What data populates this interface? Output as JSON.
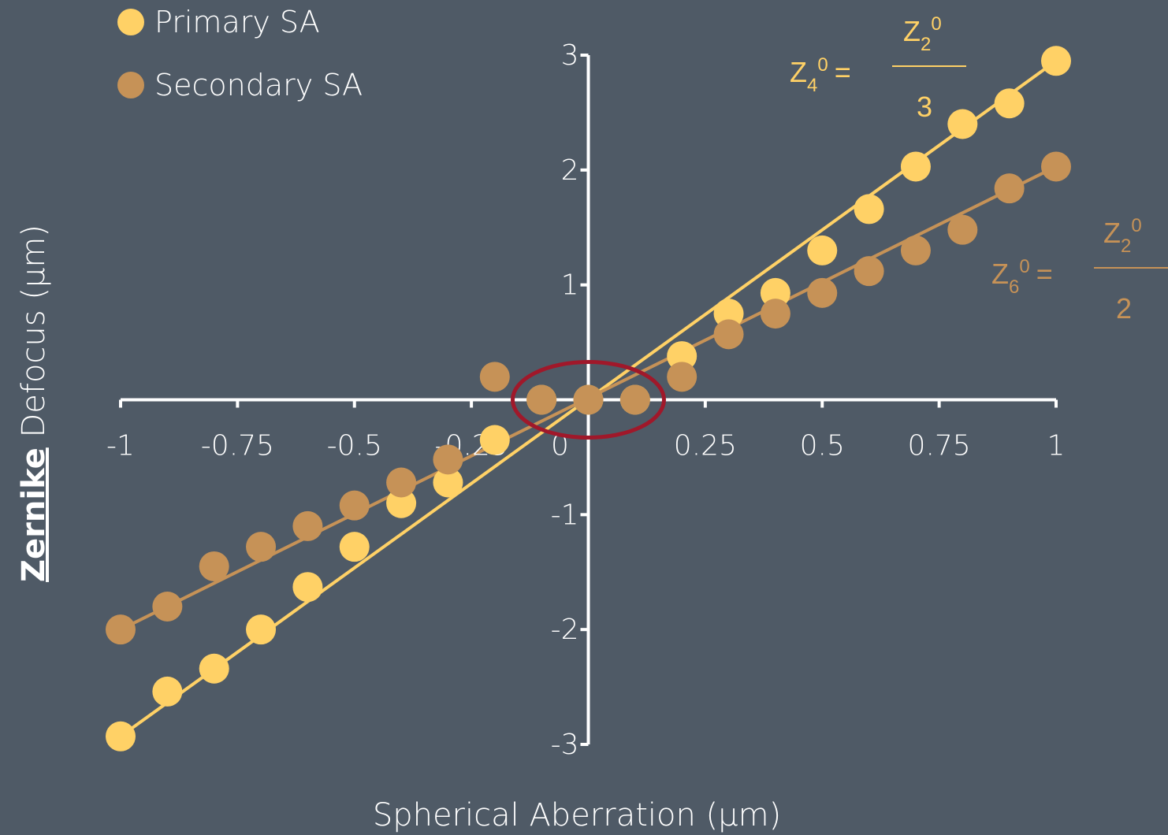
{
  "chart_data": {
    "type": "scatter",
    "xlabel": "Spherical Aberration (μm)",
    "ylabel_underlined": "Zernike",
    "ylabel_rest": " Defocus  (μm)",
    "xlim": [
      -1,
      1
    ],
    "ylim": [
      -3,
      3
    ],
    "x_ticks": [
      {
        "value": -1,
        "label": "-1"
      },
      {
        "value": -0.75,
        "label": "-0.75"
      },
      {
        "value": -0.5,
        "label": "-0.5"
      },
      {
        "value": -0.25,
        "label": "-0.25"
      },
      {
        "value": 0,
        "label": "0"
      },
      {
        "value": 0.25,
        "label": "0.25"
      },
      {
        "value": 0.5,
        "label": "0.5"
      },
      {
        "value": 0.75,
        "label": "0.75"
      },
      {
        "value": 1,
        "label": "1"
      }
    ],
    "y_ticks": [
      {
        "value": 3,
        "label": "3"
      },
      {
        "value": 2,
        "label": "2"
      },
      {
        "value": 1,
        "label": "1"
      },
      {
        "value": -1,
        "label": "-1"
      },
      {
        "value": -2,
        "label": "-2"
      },
      {
        "value": -3,
        "label": "-3"
      }
    ],
    "series": [
      {
        "name": "Primary SA",
        "color": "#ffd166",
        "points": [
          [
            -1.0,
            -2.93
          ],
          [
            -0.9,
            -2.54
          ],
          [
            -0.8,
            -2.34
          ],
          [
            -0.7,
            -2.0
          ],
          [
            -0.6,
            -1.63
          ],
          [
            -0.5,
            -1.28
          ],
          [
            -0.4,
            -0.9
          ],
          [
            -0.3,
            -0.72
          ],
          [
            -0.2,
            -0.35
          ],
          [
            -0.1,
            0.0
          ],
          [
            0.0,
            0.0
          ],
          [
            0.1,
            0.0
          ],
          [
            0.2,
            0.38
          ],
          [
            0.3,
            0.75
          ],
          [
            0.4,
            0.93
          ],
          [
            0.5,
            1.3
          ],
          [
            0.6,
            1.66
          ],
          [
            0.7,
            2.03
          ],
          [
            0.8,
            2.4
          ],
          [
            0.9,
            2.58
          ],
          [
            1.0,
            2.95
          ]
        ],
        "fit_line": [
          [
            -1.0,
            -2.93
          ],
          [
            -0.4,
            -1.17
          ],
          [
            1.0,
            2.95
          ]
        ]
      },
      {
        "name": "Secondary SA",
        "color": "#c69257",
        "points": [
          [
            -1.0,
            -2.0
          ],
          [
            -0.9,
            -1.8
          ],
          [
            -0.8,
            -1.45
          ],
          [
            -0.7,
            -1.28
          ],
          [
            -0.6,
            -1.1
          ],
          [
            -0.5,
            -0.92
          ],
          [
            -0.4,
            -0.72
          ],
          [
            -0.3,
            -0.52
          ],
          [
            -0.2,
            0.2
          ],
          [
            -0.1,
            0.0
          ],
          [
            0.0,
            0.0
          ],
          [
            0.1,
            0.0
          ],
          [
            0.2,
            0.2
          ],
          [
            0.3,
            0.57
          ],
          [
            0.4,
            0.75
          ],
          [
            0.5,
            0.93
          ],
          [
            0.6,
            1.12
          ],
          [
            0.7,
            1.3
          ],
          [
            0.8,
            1.48
          ],
          [
            0.9,
            1.84
          ],
          [
            1.0,
            2.03
          ]
        ],
        "fit_line": [
          [
            -1.0,
            -2.0
          ],
          [
            1.0,
            2.03
          ]
        ]
      }
    ],
    "highlight_color": "#a0182a",
    "equations": [
      {
        "lhs_base": "Z",
        "lhs_sub": "4",
        "lhs_sup": "0",
        "equals": "=",
        "num_base": "Z",
        "num_sub": "2",
        "num_sup": "0",
        "denominator": "3",
        "color": "#ffd166"
      },
      {
        "lhs_base": "Z",
        "lhs_sub": "6",
        "lhs_sup": "0",
        "equals": "=",
        "num_base": "Z",
        "num_sub": "2",
        "num_sup": "0",
        "denominator": "2",
        "color": "#c69257"
      }
    ]
  }
}
